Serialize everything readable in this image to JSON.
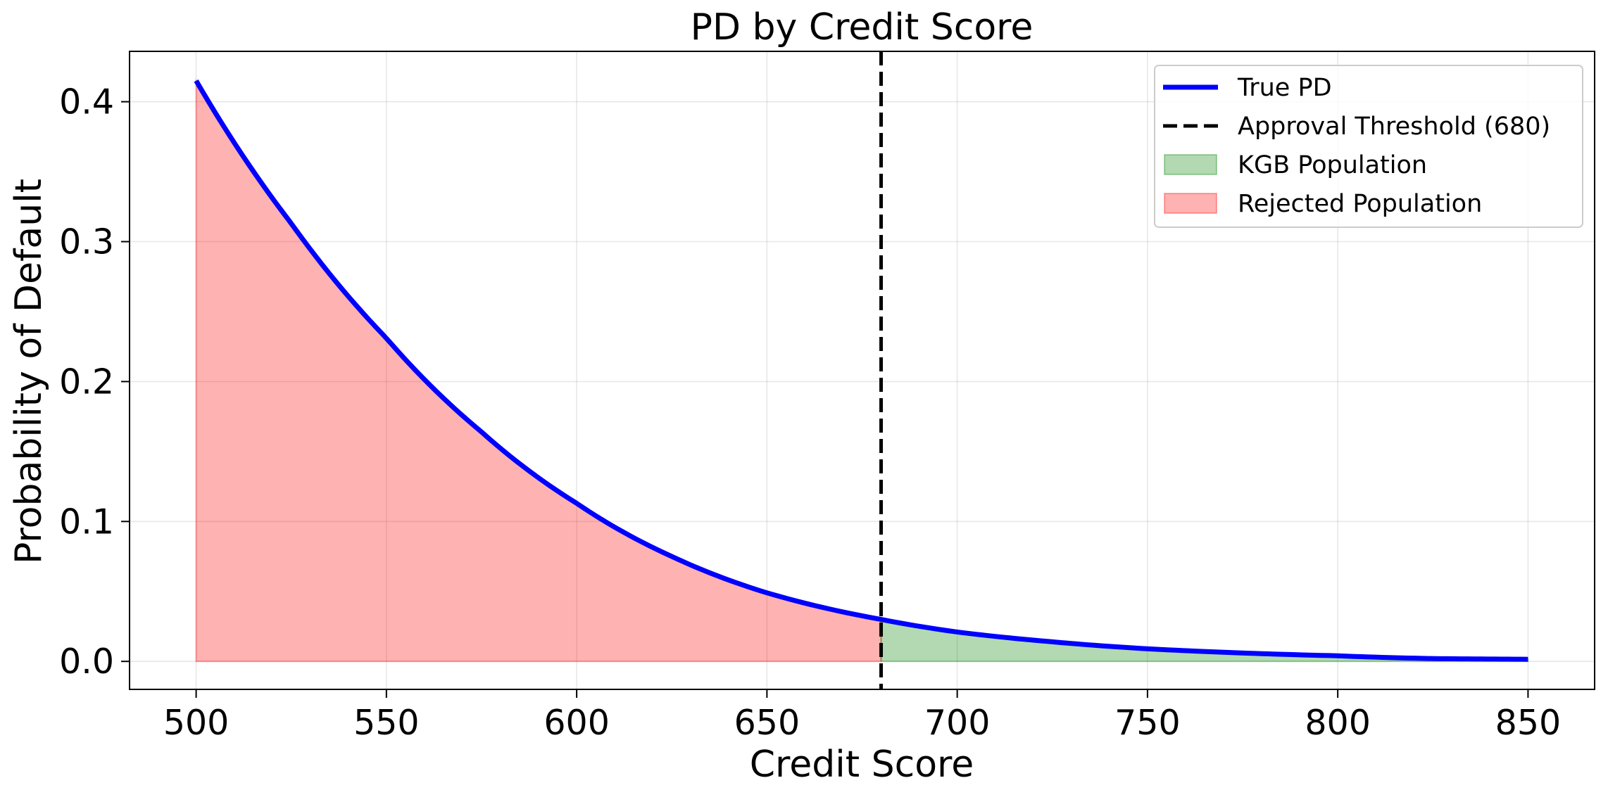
{
  "chart_data": {
    "type": "line",
    "title": "PD by Credit Score",
    "xlabel": "Credit Score",
    "ylabel": "Probability of Default",
    "xlim": [
      482.5,
      867.5
    ],
    "ylim": [
      -0.02,
      0.436
    ],
    "xticks": [
      500,
      550,
      600,
      650,
      700,
      750,
      800,
      850
    ],
    "yticks": [
      0.0,
      0.1,
      0.2,
      0.3,
      0.4
    ],
    "ytick_labels": [
      "0.0",
      "0.1",
      "0.2",
      "0.3",
      "0.4"
    ],
    "grid": true,
    "legend_position": "top-right",
    "threshold": {
      "x": 680,
      "label": "Approval Threshold (680)",
      "color": "#000000"
    },
    "series": [
      {
        "name": "True PD",
        "color": "#0000ff",
        "x": [
          500,
          525,
          550,
          575,
          600,
          625,
          650,
          680,
          700,
          725,
          750,
          775,
          800,
          825,
          850
        ],
        "y": [
          0.415,
          0.313,
          0.231,
          0.164,
          0.113,
          0.075,
          0.049,
          0.03,
          0.021,
          0.014,
          0.009,
          0.006,
          0.004,
          0.002,
          0.0015
        ]
      }
    ],
    "areas": [
      {
        "name": "Rejected Population",
        "color": "#ff0000",
        "opacity": 0.3,
        "x_from": 500,
        "x_to": 680
      },
      {
        "name": "KGB Population",
        "color": "#008000",
        "opacity": 0.3,
        "x_from": 680,
        "x_to": 850
      }
    ],
    "legend": [
      {
        "label": "True PD",
        "kind": "line",
        "color": "#0000ff"
      },
      {
        "label": "Approval Threshold (680)",
        "kind": "dashed",
        "color": "#000000"
      },
      {
        "label": "KGB Population",
        "kind": "patch",
        "color": "#008000"
      },
      {
        "label": "Rejected Population",
        "kind": "patch",
        "color": "#ff0000"
      }
    ]
  }
}
